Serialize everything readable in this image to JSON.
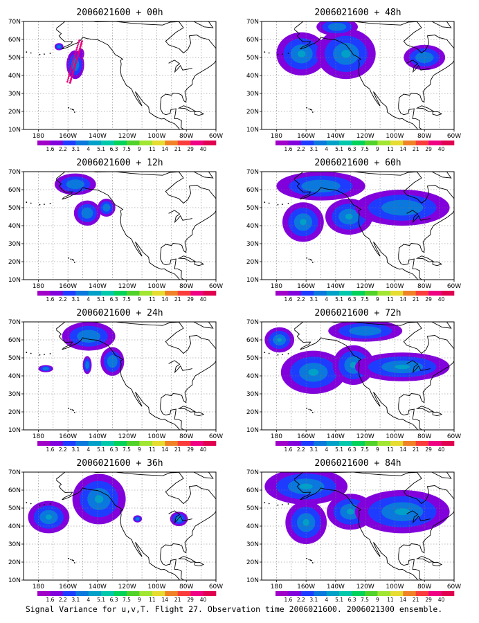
{
  "caption": "Signal Variance for u,v,T. Flight 27. Observation time 2006021600. 2006021300 ensemble.",
  "x_ticks": [
    "180",
    "160W",
    "140W",
    "120W",
    "100W",
    "80W",
    "60W"
  ],
  "y_ticks": [
    "10N",
    "20N",
    "30N",
    "40N",
    "50N",
    "60N",
    "70N"
  ],
  "colorbar": {
    "labels": [
      "1.6",
      "2.2",
      "3.1",
      "4",
      "5.1",
      "6.3",
      "7.5",
      "9",
      "11",
      "14",
      "21",
      "29",
      "40"
    ],
    "colors": [
      "#a000c8",
      "#8200dc",
      "#1e3cff",
      "#0a78dc",
      "#00a0c8",
      "#00c8aa",
      "#00d25a",
      "#50d22a",
      "#a0e632",
      "#e6dc32",
      "#f08228",
      "#fa3c3c",
      "#f00082",
      "#e10050"
    ]
  },
  "panels": [
    {
      "title": "2006021600 + 00h",
      "blobs": [
        [
          -155,
          46,
          6,
          8,
          1
        ],
        [
          -166,
          56,
          3,
          2,
          1
        ],
        [
          -151,
          52,
          2,
          3,
          0
        ]
      ]
    },
    {
      "title": "2006021600 + 12h",
      "blobs": [
        [
          -155,
          63,
          14,
          6,
          1
        ],
        [
          -147,
          47,
          9,
          7,
          1
        ],
        [
          -134,
          50,
          6,
          5,
          1
        ]
      ]
    },
    {
      "title": "2006021600 + 24h",
      "blobs": [
        [
          -146,
          62,
          18,
          8,
          1
        ],
        [
          -130,
          48,
          8,
          8,
          1
        ],
        [
          -175,
          44,
          5,
          2,
          1
        ],
        [
          -147,
          46,
          3,
          5,
          1
        ]
      ]
    },
    {
      "title": "2006021600 + 36h",
      "blobs": [
        [
          -173,
          45,
          14,
          9,
          2
        ],
        [
          -139,
          55,
          18,
          14,
          2
        ],
        [
          -113,
          44,
          3,
          2,
          1
        ],
        [
          -85,
          44,
          6,
          4,
          2
        ]
      ]
    },
    {
      "title": "2006021600 + 48h",
      "blobs": [
        [
          -163,
          52,
          17,
          12,
          2
        ],
        [
          -133,
          52,
          20,
          14,
          3
        ],
        [
          -139,
          67,
          14,
          5,
          1
        ],
        [
          -80,
          50,
          14,
          7,
          1
        ]
      ]
    },
    {
      "title": "2006021600 + 60h",
      "blobs": [
        [
          -150,
          62,
          30,
          8,
          1
        ],
        [
          -162,
          42,
          14,
          11,
          2
        ],
        [
          -131,
          45,
          16,
          10,
          3
        ],
        [
          -95,
          50,
          32,
          10,
          1
        ]
      ]
    },
    {
      "title": "2006021600 + 72h",
      "blobs": [
        [
          -178,
          60,
          10,
          7,
          2
        ],
        [
          -155,
          42,
          22,
          12,
          4
        ],
        [
          -128,
          46,
          14,
          11,
          3
        ],
        [
          -95,
          45,
          32,
          8,
          2
        ],
        [
          -120,
          65,
          25,
          6,
          1
        ]
      ]
    },
    {
      "title": "2006021600 + 84h",
      "blobs": [
        [
          -160,
          62,
          28,
          10,
          3
        ],
        [
          -160,
          42,
          14,
          12,
          3
        ],
        [
          -130,
          48,
          16,
          10,
          2
        ],
        [
          -95,
          48,
          32,
          12,
          2
        ]
      ]
    }
  ]
}
